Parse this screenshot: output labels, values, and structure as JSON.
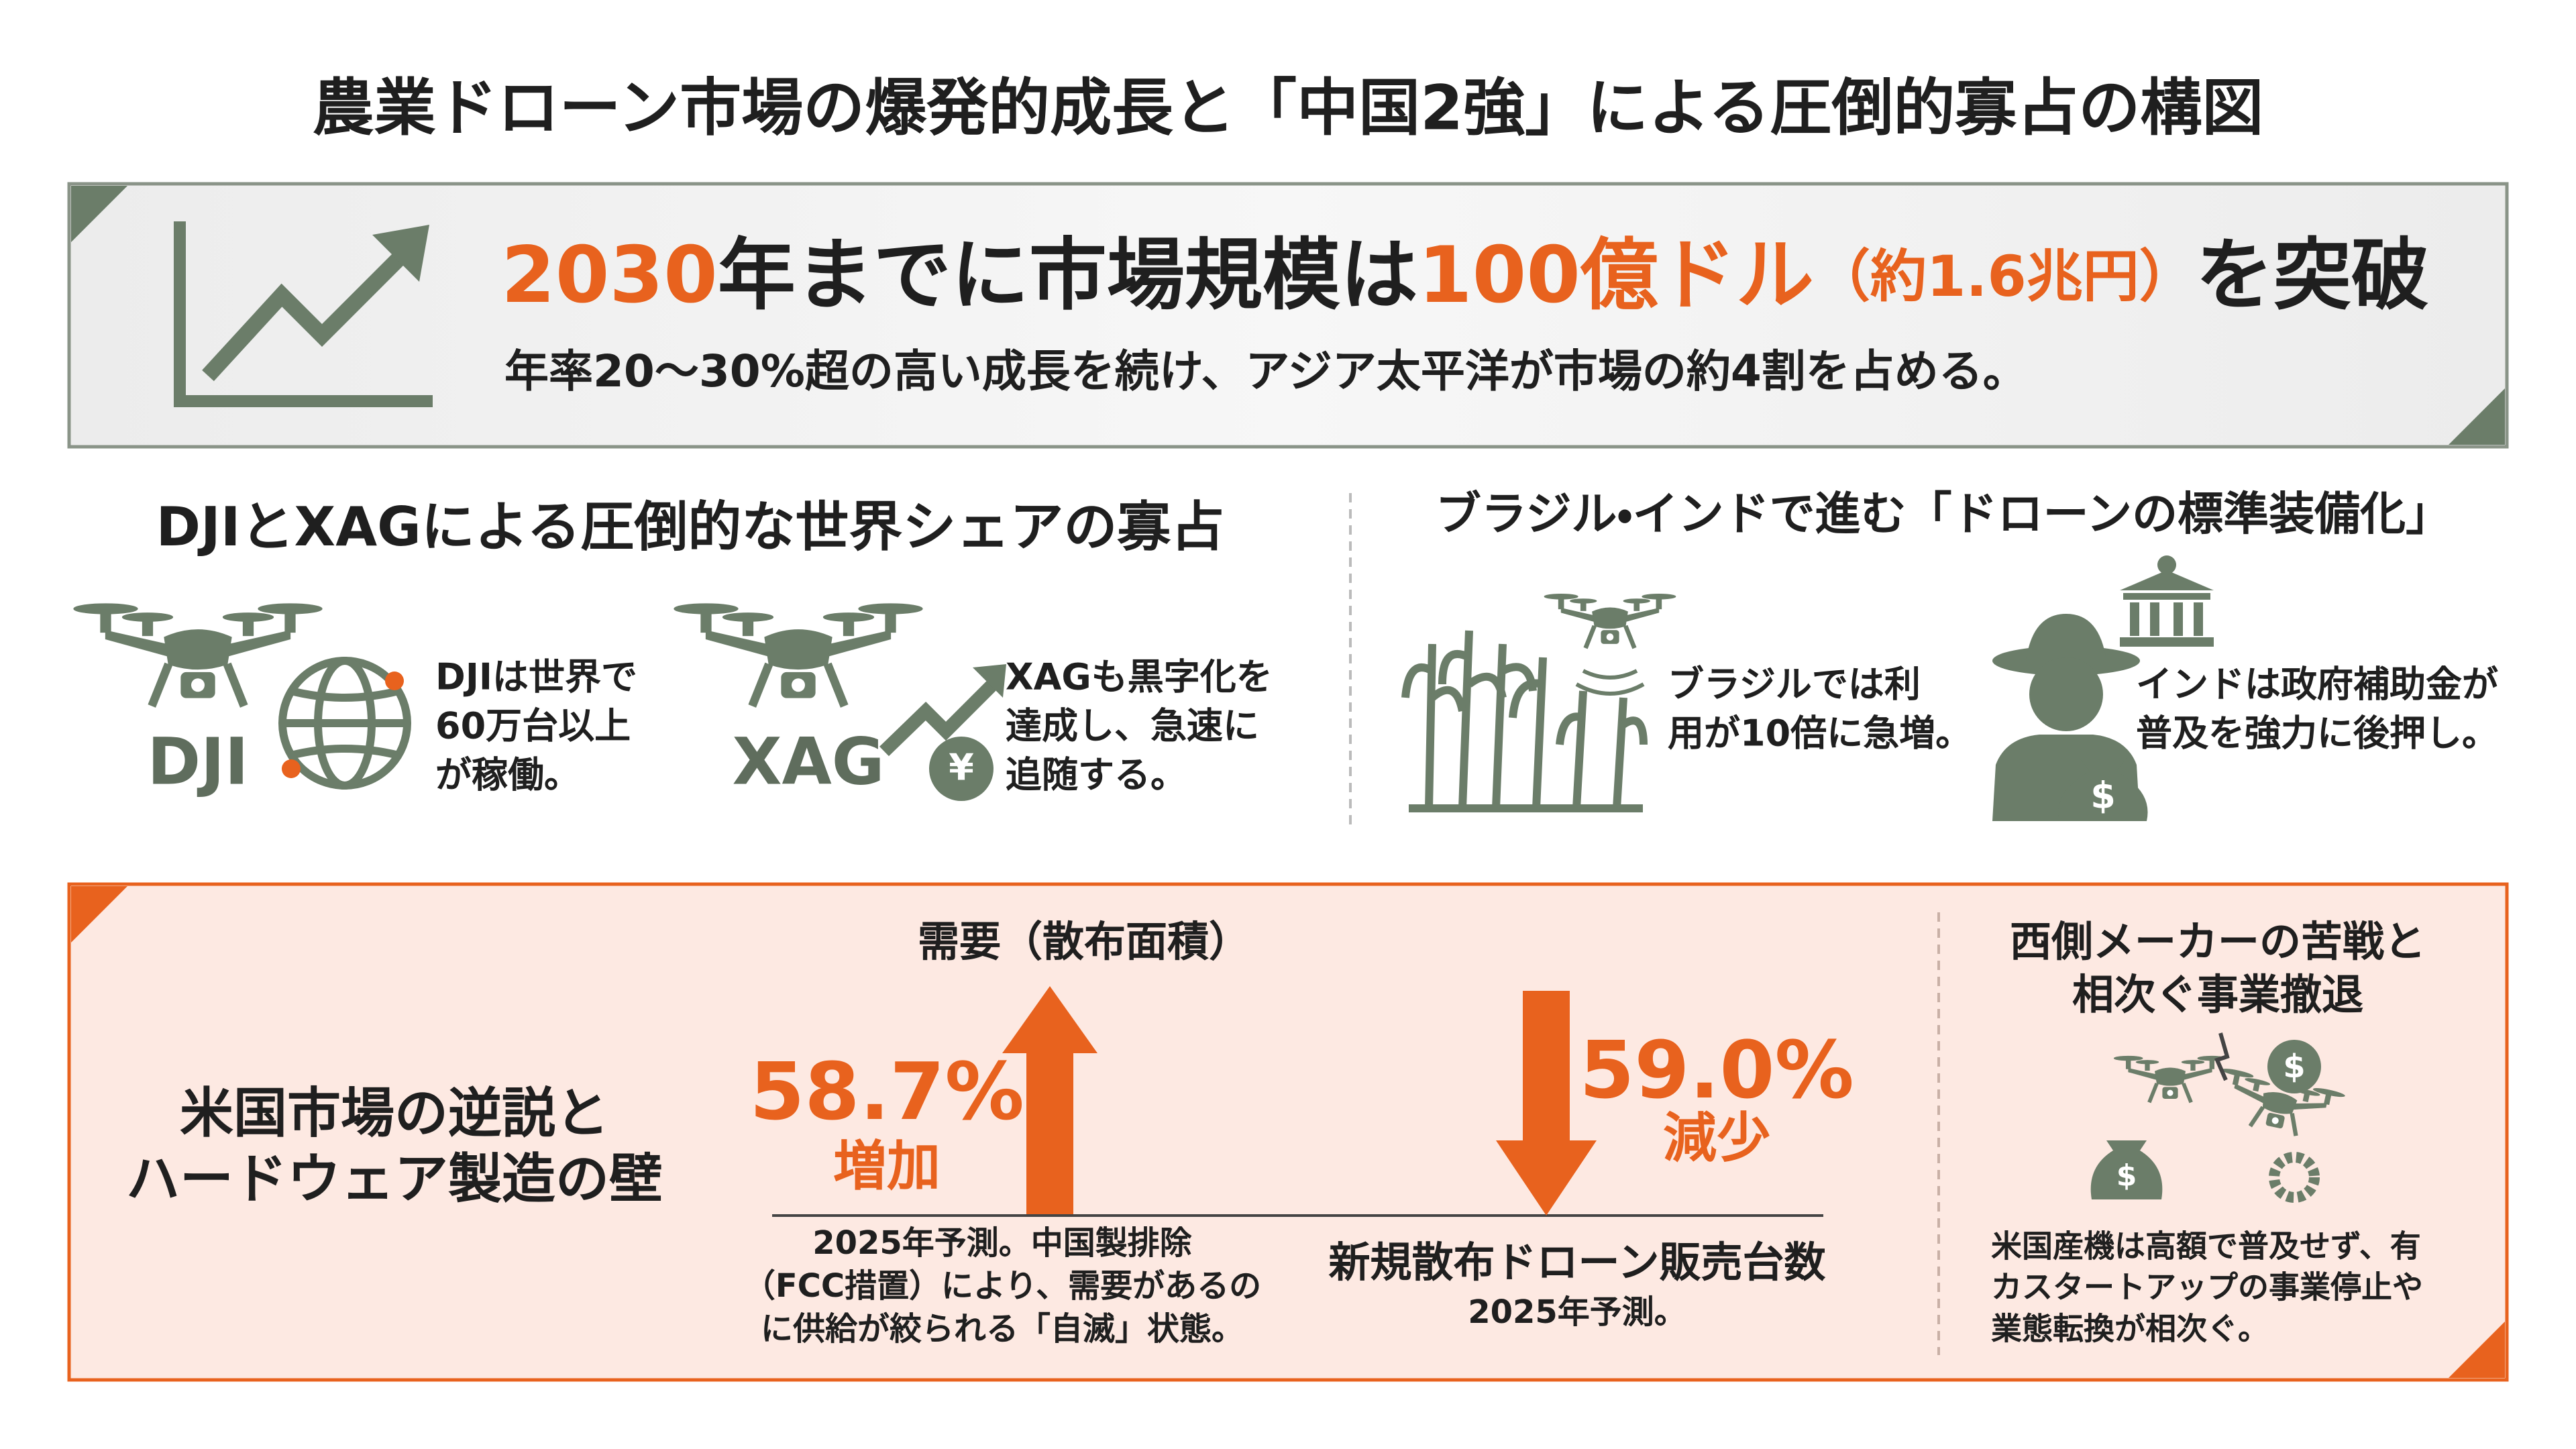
{
  "title": "農業ドローン市場の爆発的成長と「中国2強」による圧倒的寡占の構図",
  "highlight": {
    "headline": [
      "2030",
      "年までに市場規模は",
      "100億ドル",
      "（約1.6兆円）",
      "を突破"
    ],
    "subtext": "年率20〜30%超の高い成長を続け、アジア太平洋が市場の約4割を占める。"
  },
  "dominance": {
    "heading": "DJIとXAGによる圧倒的な世界シェアの寡占",
    "dji": {
      "logo": "DJI",
      "lines": [
        "DJIは世界で",
        "60万台以上",
        "が稼働。"
      ]
    },
    "xag": {
      "logo": "XAG",
      "lines": [
        "XAGも黒字化を",
        "達成し、急速に",
        "追随する。"
      ]
    }
  },
  "standardization": {
    "heading": "ブラジル・インドで進む「ドローンの標準装備化」",
    "brazil": {
      "lines": [
        "ブラジルでは利",
        "用が10倍に急増。"
      ]
    },
    "india": {
      "lines": [
        "インドは政府補助金が",
        "普及を強力に後押し。"
      ]
    }
  },
  "us_market": {
    "label_lines": [
      "米国市場の逆説と",
      "ハードウェア製造の壁"
    ],
    "demand": {
      "heading": "需要（散布面積）",
      "value": "58.7%",
      "direction": "増加",
      "note_lines": [
        "2025年予測。中国製排除",
        "（FCC措置）により、需要があるの",
        "に供給が絞られる「自滅」状態。"
      ]
    },
    "sales": {
      "heading": "新規散布ドローン販売台数",
      "value": "59.0%",
      "direction": "減少",
      "note": "2025年予測。"
    },
    "western": {
      "heading_lines": [
        "西側メーカーの苦戦と",
        "相次ぐ事業撤退"
      ],
      "note_lines": [
        "米国産機は高額で普及せず、有",
        "カスタートアップの事業停止や",
        "業態転換が相次ぐ。"
      ]
    }
  }
}
